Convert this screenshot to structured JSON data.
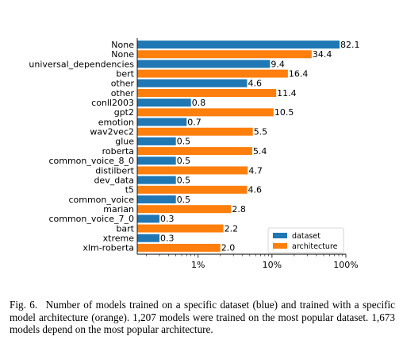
{
  "chart_data": {
    "type": "bar",
    "orientation": "horizontal",
    "x_scale": "log",
    "xlim": [
      0.15,
      100
    ],
    "xticks": [
      1,
      10,
      100
    ],
    "xtick_labels": [
      "1%",
      "10%",
      "100%"
    ],
    "colors": {
      "dataset": "#1f77b4",
      "architecture": "#ff7f0e"
    },
    "legend": {
      "placement": "lower-right",
      "entries": [
        "dataset",
        "architecture"
      ]
    },
    "bars": [
      {
        "category": "None",
        "series": "dataset",
        "value": 82.1,
        "value_label": "82.1"
      },
      {
        "category": "None",
        "series": "architecture",
        "value": 34.4,
        "value_label": "34.4"
      },
      {
        "category": "universal_dependencies",
        "series": "dataset",
        "value": 9.4,
        "value_label": "9.4"
      },
      {
        "category": "bert",
        "series": "architecture",
        "value": 16.4,
        "value_label": "16.4"
      },
      {
        "category": "other",
        "series": "dataset",
        "value": 4.6,
        "value_label": "4.6"
      },
      {
        "category": "other",
        "series": "architecture",
        "value": 11.4,
        "value_label": "11.4"
      },
      {
        "category": "conll2003",
        "series": "dataset",
        "value": 0.8,
        "value_label": "0.8"
      },
      {
        "category": "gpt2",
        "series": "architecture",
        "value": 10.5,
        "value_label": "10.5"
      },
      {
        "category": "emotion",
        "series": "dataset",
        "value": 0.7,
        "value_label": "0.7"
      },
      {
        "category": "wav2vec2",
        "series": "architecture",
        "value": 5.5,
        "value_label": "5.5"
      },
      {
        "category": "glue",
        "series": "dataset",
        "value": 0.5,
        "value_label": "0.5"
      },
      {
        "category": "roberta",
        "series": "architecture",
        "value": 5.4,
        "value_label": "5.4"
      },
      {
        "category": "common_voice_8_0",
        "series": "dataset",
        "value": 0.5,
        "value_label": "0.5"
      },
      {
        "category": "distilbert",
        "series": "architecture",
        "value": 4.7,
        "value_label": "4.7"
      },
      {
        "category": "dev_data",
        "series": "dataset",
        "value": 0.5,
        "value_label": "0.5"
      },
      {
        "category": "t5",
        "series": "architecture",
        "value": 4.6,
        "value_label": "4.6"
      },
      {
        "category": "common_voice",
        "series": "dataset",
        "value": 0.5,
        "value_label": "0.5"
      },
      {
        "category": "marian",
        "series": "architecture",
        "value": 2.8,
        "value_label": "2.8"
      },
      {
        "category": "common_voice_7_0",
        "series": "dataset",
        "value": 0.3,
        "value_label": "0.3"
      },
      {
        "category": "bart",
        "series": "architecture",
        "value": 2.2,
        "value_label": "2.2"
      },
      {
        "category": "xtreme",
        "series": "dataset",
        "value": 0.3,
        "value_label": "0.3"
      },
      {
        "category": "xlm-roberta",
        "series": "architecture",
        "value": 2.0,
        "value_label": "2.0"
      }
    ]
  },
  "caption": {
    "label": "Fig. 6.",
    "text": "Number of models trained on a specific dataset (blue) and trained with a specific model architecture (orange). 1,207 models were trained on the most popular dataset. 1,673 models depend on the most popular architecture."
  }
}
